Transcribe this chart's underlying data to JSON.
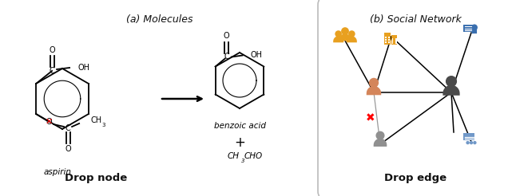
{
  "fig_width": 6.36,
  "fig_height": 2.46,
  "dpi": 100,
  "bg_color": "#e8e8e8",
  "colors": {
    "black": "#111111",
    "red": "#dd0000",
    "gold": "#e8a020",
    "orange_person": "#d4855a",
    "dark_person": "#4a4a4a",
    "gray_person": "#909090",
    "blue_icon": "#3a6faf",
    "light_blue": "#7098c8",
    "panel_edge": "#c0c0c0",
    "panel_bg": "#ffffff"
  },
  "left_title": "(a) Molecules",
  "right_title": "(b) Social Network",
  "left_footer": "Drop node",
  "right_footer": "Drop edge",
  "aspirin_label": "aspirin",
  "benzoic_label": "benzoic acid",
  "product_label1": "CH",
  "product_label2": "CHO",
  "plus_label": "+"
}
